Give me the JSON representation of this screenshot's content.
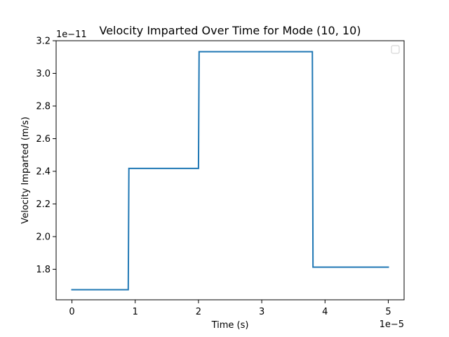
{
  "chart_data": {
    "type": "line",
    "title": "Velocity Imparted Over Time for Mode (10, 10)",
    "xlabel": "Time (s)",
    "ylabel": "Velocity Imparted (m/s)",
    "x_scale_label": "1e−5",
    "y_scale_label": "1e−11",
    "xlim": [
      -0.25,
      5.25
    ],
    "ylim": [
      1.613,
      3.2
    ],
    "x_ticks": [
      0,
      1,
      2,
      3,
      4,
      5
    ],
    "x_tick_labels": [
      "0",
      "1",
      "2",
      "3",
      "4",
      "5"
    ],
    "y_ticks": [
      1.8,
      2.0,
      2.2,
      2.4,
      2.6,
      2.8,
      3.0,
      3.2
    ],
    "y_tick_labels": [
      "1.8",
      "2.0",
      "2.2",
      "2.4",
      "2.6",
      "2.8",
      "3.0",
      "3.2"
    ],
    "grid": false,
    "legend": {
      "placement": "top-right",
      "entries": []
    },
    "series": [
      {
        "color": "#1f77b4",
        "x": [
          0,
          0.89,
          0.9,
          2.0,
          2.01,
          3.8,
          3.81,
          5.0
        ],
        "y": [
          1.675,
          1.675,
          2.418,
          2.418,
          3.133,
          3.133,
          1.813,
          1.813
        ]
      }
    ]
  }
}
